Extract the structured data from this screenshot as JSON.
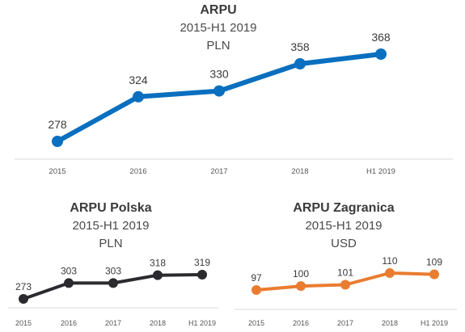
{
  "chart_data": [
    {
      "type": "line",
      "title": "ARPU",
      "subtitle": "2015-H1 2019",
      "unit": "PLN",
      "categories": [
        "2015",
        "2016",
        "2017",
        "2018",
        "H1 2019"
      ],
      "values": [
        278,
        324,
        330,
        358,
        368
      ],
      "color": "#0a6fbf",
      "grid": false
    },
    {
      "type": "line",
      "title": "ARPU Polska",
      "subtitle": "2015-H1 2019",
      "unit": "PLN",
      "categories": [
        "2015",
        "2016",
        "2017",
        "2018",
        "H1 2019"
      ],
      "values": [
        273,
        303,
        303,
        318,
        319
      ],
      "color": "#2b2b2f",
      "grid": false
    },
    {
      "type": "line",
      "title": "ARPU Zagranica",
      "subtitle": "2015-H1 2019",
      "unit": "USD",
      "categories": [
        "2015",
        "2016",
        "2017",
        "2018",
        "H1 2019"
      ],
      "values": [
        97,
        100,
        101,
        110,
        109
      ],
      "color": "#ea7c30",
      "grid": false
    }
  ]
}
